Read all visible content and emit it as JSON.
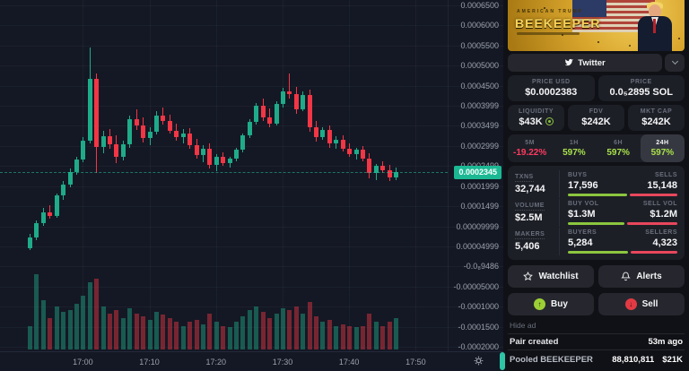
{
  "chart": {
    "current_price_label": "0.0002345",
    "price_ticks": [
      {
        "label": "0.0006500",
        "p": 6.5
      },
      {
        "label": "0.0006000",
        "p": 6.0
      },
      {
        "label": "0.0005500",
        "p": 5.5
      },
      {
        "label": "0.0005000",
        "p": 5.0
      },
      {
        "label": "0.0004500",
        "p": 4.5
      },
      {
        "label": "0.0003999",
        "p": 4.0
      },
      {
        "label": "0.0003499",
        "p": 3.5
      },
      {
        "label": "0.0002999",
        "p": 3.0
      },
      {
        "label": "0.0002499",
        "p": 2.5
      },
      {
        "label": "0.0001999",
        "p": 2.0
      },
      {
        "label": "0.0001499",
        "p": 1.5
      },
      {
        "label": "0.00009999",
        "p": 1.0
      },
      {
        "label": "0.00004999",
        "p": 0.5
      },
      {
        "label": "-0.0₈9486",
        "p": 0.0
      },
      {
        "label": "-0.00005000",
        "p": -0.5
      },
      {
        "label": "-0.0001000",
        "p": -1.0
      },
      {
        "label": "-0.0001500",
        "p": -1.5
      },
      {
        "label": "-0.0002000",
        "p": -2.0
      }
    ],
    "time_ticks": [
      {
        "label": "17:00",
        "i": 8
      },
      {
        "label": "17:10",
        "i": 18
      },
      {
        "label": "17:20",
        "i": 28
      },
      {
        "label": "17:30",
        "i": 38
      },
      {
        "label": "17:40",
        "i": 48
      },
      {
        "label": "17:50",
        "i": 58
      }
    ]
  },
  "chart_data": {
    "type": "candlestick_with_volume",
    "interval": "1m",
    "start_time": "16:52",
    "end_time": "17:47",
    "price_scale": 0.0001,
    "current_price": 2.345,
    "up_color": "#1fab89",
    "down_color": "#f23645",
    "candles": [
      [
        0.45,
        0.8,
        0.4,
        0.72,
        0.3
      ],
      [
        0.72,
        1.15,
        0.66,
        1.08,
        0.95
      ],
      [
        1.08,
        1.45,
        1.0,
        1.35,
        0.62
      ],
      [
        1.35,
        1.52,
        1.18,
        1.26,
        0.4
      ],
      [
        1.26,
        1.82,
        1.22,
        1.76,
        0.55
      ],
      [
        1.76,
        2.12,
        1.66,
        2.04,
        0.48
      ],
      [
        2.04,
        2.44,
        1.96,
        2.36,
        0.5
      ],
      [
        2.36,
        2.74,
        2.28,
        2.66,
        0.58
      ],
      [
        2.66,
        3.22,
        2.6,
        3.14,
        0.68
      ],
      [
        3.14,
        5.46,
        3.06,
        4.68,
        0.85
      ],
      [
        4.68,
        4.8,
        2.33,
        2.98,
        0.9
      ],
      [
        2.98,
        3.38,
        2.82,
        3.24,
        0.55
      ],
      [
        3.24,
        3.42,
        2.94,
        3.04,
        0.45
      ],
      [
        3.04,
        3.26,
        2.58,
        2.72,
        0.5
      ],
      [
        2.72,
        3.12,
        2.64,
        3.04,
        0.4
      ],
      [
        3.04,
        3.76,
        2.96,
        3.66,
        0.52
      ],
      [
        3.66,
        3.92,
        3.4,
        3.52,
        0.45
      ],
      [
        3.52,
        3.72,
        3.08,
        3.2,
        0.42
      ],
      [
        3.2,
        3.46,
        3.02,
        3.36,
        0.38
      ],
      [
        3.36,
        3.86,
        3.28,
        3.76,
        0.48
      ],
      [
        3.76,
        3.96,
        3.54,
        3.62,
        0.44
      ],
      [
        3.62,
        3.78,
        3.3,
        3.38,
        0.4
      ],
      [
        3.38,
        3.56,
        3.14,
        3.22,
        0.35
      ],
      [
        3.22,
        3.42,
        3.06,
        3.32,
        0.3
      ],
      [
        3.32,
        3.44,
        2.94,
        3.02,
        0.35
      ],
      [
        3.02,
        3.18,
        2.68,
        2.78,
        0.38
      ],
      [
        2.78,
        3.02,
        2.6,
        2.94,
        0.32
      ],
      [
        2.94,
        3.06,
        2.44,
        2.52,
        0.45
      ],
      [
        2.52,
        2.8,
        2.38,
        2.72,
        0.35
      ],
      [
        2.72,
        2.84,
        2.5,
        2.58,
        0.3
      ],
      [
        2.58,
        2.74,
        2.46,
        2.68,
        0.28
      ],
      [
        2.68,
        2.96,
        2.62,
        2.9,
        0.35
      ],
      [
        2.9,
        3.32,
        2.84,
        3.26,
        0.42
      ],
      [
        3.26,
        3.66,
        3.2,
        3.6,
        0.5
      ],
      [
        3.6,
        4.06,
        3.54,
        4.0,
        0.55
      ],
      [
        4.0,
        4.18,
        3.62,
        3.72,
        0.48
      ],
      [
        3.72,
        3.94,
        3.46,
        3.56,
        0.4
      ],
      [
        3.56,
        4.12,
        3.5,
        4.04,
        0.45
      ],
      [
        4.04,
        4.44,
        3.96,
        4.36,
        0.52
      ],
      [
        4.36,
        4.8,
        4.18,
        4.3,
        0.5
      ],
      [
        4.3,
        4.46,
        3.8,
        3.92,
        0.55
      ],
      [
        3.92,
        4.36,
        3.86,
        4.28,
        0.45
      ],
      [
        4.28,
        4.4,
        3.36,
        3.46,
        0.6
      ],
      [
        3.46,
        3.62,
        3.1,
        3.22,
        0.42
      ],
      [
        3.22,
        3.46,
        3.16,
        3.4,
        0.35
      ],
      [
        3.4,
        3.52,
        2.96,
        3.06,
        0.38
      ],
      [
        3.06,
        3.24,
        2.92,
        3.16,
        0.3
      ],
      [
        3.16,
        3.26,
        2.86,
        2.94,
        0.32
      ],
      [
        2.94,
        3.06,
        2.72,
        2.8,
        0.3
      ],
      [
        2.8,
        2.96,
        2.66,
        2.9,
        0.28
      ],
      [
        2.9,
        3.0,
        2.62,
        2.68,
        0.3
      ],
      [
        2.68,
        2.82,
        2.2,
        2.32,
        0.45
      ],
      [
        2.32,
        2.56,
        2.16,
        2.5,
        0.35
      ],
      [
        2.5,
        2.62,
        2.32,
        2.4,
        0.3
      ],
      [
        2.4,
        2.52,
        2.12,
        2.22,
        0.35
      ],
      [
        2.22,
        2.46,
        2.16,
        2.345,
        0.4
      ]
    ]
  },
  "sidebar": {
    "ad": {
      "kicker": "AMERICAN TRUMP",
      "title": "BEEKEEPER",
      "hide_label": "Hide ad"
    },
    "social": {
      "twitter_label": "Twitter"
    },
    "price_usd": {
      "label": "PRICE USD",
      "value": "$0.0002383"
    },
    "price_native": {
      "label": "PRICE",
      "value": "0.0₅2895 SOL"
    },
    "liquidity": {
      "label": "LIQUIDITY",
      "value": "$43K"
    },
    "fdv": {
      "label": "FDV",
      "value": "$242K"
    },
    "mkt_cap": {
      "label": "MKT CAP",
      "value": "$242K"
    },
    "timeframes": [
      {
        "label": "5M",
        "value": "-19.22%",
        "dir": "down",
        "selected": false
      },
      {
        "label": "1H",
        "value": "597%",
        "dir": "up",
        "selected": false
      },
      {
        "label": "6H",
        "value": "597%",
        "dir": "up",
        "selected": false
      },
      {
        "label": "24H",
        "value": "597%",
        "dir": "up",
        "selected": true
      }
    ],
    "stats": [
      {
        "left_label": "TXNS",
        "left_value": "32,744",
        "a_label": "BUYS",
        "a_value": "17,596",
        "b_label": "SELLS",
        "b_value": "15,148",
        "a_pct": 54
      },
      {
        "left_label": "VOLUME",
        "left_value": "$2.5M",
        "a_label": "BUY VOL",
        "a_value": "$1.3M",
        "b_label": "SELL VOL",
        "b_value": "$1.2M",
        "a_pct": 52
      },
      {
        "left_label": "MAKERS",
        "left_value": "5,406",
        "a_label": "BUYERS",
        "a_value": "5,284",
        "b_label": "SELLERS",
        "b_value": "4,323",
        "a_pct": 55
      }
    ],
    "actions": {
      "watchlist": "Watchlist",
      "alerts": "Alerts",
      "buy": "Buy",
      "sell": "Sell"
    },
    "pair_created": {
      "label": "Pair created",
      "value": "53m ago"
    },
    "pooled": {
      "label": "Pooled BEEKEEPER",
      "amount": "88,810,811",
      "usd": "$21K"
    }
  }
}
